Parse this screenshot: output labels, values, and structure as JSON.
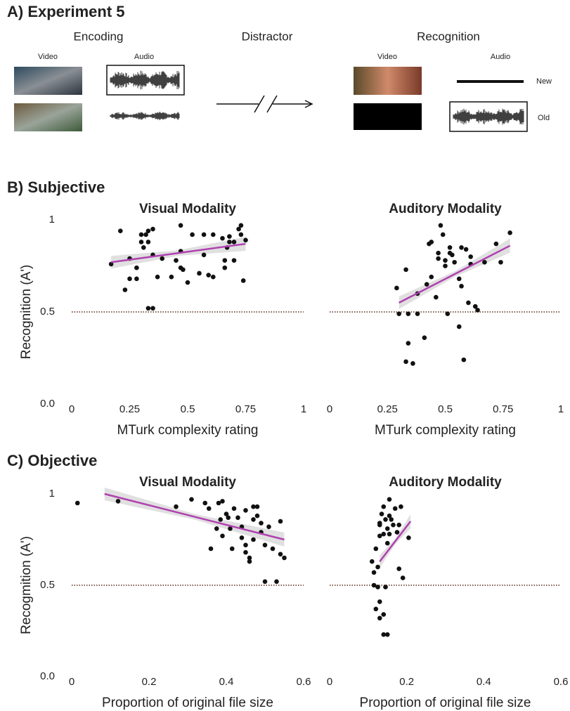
{
  "panel_a": {
    "title": "A) Experiment 5",
    "encoding": "Encoding",
    "distractor": "Distractor",
    "recognition": "Recognition",
    "enc_video": "Video",
    "enc_audio": "Audio",
    "rec_video": "Video",
    "rec_audio": "Audio",
    "new": "New",
    "old": "Old"
  },
  "section_labels": [
    "B) Subjective",
    "C) Objective"
  ],
  "chart_data": [
    {
      "type": "scatter",
      "title": "Visual Modality",
      "xlabel": "MTurk complexity rating",
      "ylabel": "Recognition (A')",
      "xlim": [
        0,
        1
      ],
      "ylim": [
        0,
        1
      ],
      "xticks": [
        0,
        0.25,
        0.5,
        0.75,
        1
      ],
      "yticks": [
        {
          "value": 0,
          "label": "0.0"
        },
        0.5,
        1
      ],
      "hline": 0.5,
      "color": "#111111",
      "x": [
        0.17,
        0.21,
        0.23,
        0.25,
        0.25,
        0.28,
        0.28,
        0.3,
        0.3,
        0.31,
        0.32,
        0.33,
        0.33,
        0.35,
        0.33,
        0.35,
        0.35,
        0.37,
        0.39,
        0.43,
        0.45,
        0.47,
        0.47,
        0.47,
        0.48,
        0.5,
        0.52,
        0.55,
        0.57,
        0.57,
        0.59,
        0.61,
        0.61,
        0.65,
        0.66,
        0.66,
        0.67,
        0.68,
        0.68,
        0.7,
        0.7,
        0.72,
        0.73,
        0.74,
        0.73,
        0.75
      ],
      "values": [
        0.76,
        0.94,
        0.62,
        0.79,
        0.68,
        0.68,
        0.74,
        0.88,
        0.92,
        0.85,
        0.92,
        0.88,
        0.52,
        0.52,
        0.94,
        0.95,
        0.81,
        0.69,
        0.79,
        0.69,
        0.78,
        0.97,
        0.83,
        0.74,
        0.73,
        0.66,
        0.92,
        0.71,
        0.92,
        0.81,
        0.7,
        0.92,
        0.69,
        0.9,
        0.78,
        0.74,
        0.85,
        0.88,
        0.91,
        0.88,
        0.78,
        0.95,
        0.97,
        0.67,
        0.92,
        0.89
      ],
      "trend": {
        "x": [
          0.17,
          0.75
        ],
        "values": [
          0.77,
          0.87
        ],
        "color": "#b040b0"
      }
    },
    {
      "type": "scatter",
      "title": "Auditory Modality",
      "xlabel": "MTurk complexity rating",
      "xlim": [
        0,
        1
      ],
      "ylim": [
        0,
        1
      ],
      "xticks": [
        0,
        0.25,
        0.5,
        0.75,
        1
      ],
      "hline": 0.5,
      "color": "#111111",
      "x": [
        0.29,
        0.3,
        0.33,
        0.34,
        0.34,
        0.33,
        0.36,
        0.38,
        0.38,
        0.41,
        0.42,
        0.43,
        0.44,
        0.44,
        0.46,
        0.47,
        0.47,
        0.48,
        0.49,
        0.5,
        0.5,
        0.52,
        0.52,
        0.51,
        0.53,
        0.54,
        0.56,
        0.57,
        0.57,
        0.56,
        0.58,
        0.59,
        0.6,
        0.61,
        0.61,
        0.63,
        0.64,
        0.67,
        0.72,
        0.74,
        0.78
      ],
      "values": [
        0.63,
        0.49,
        0.73,
        0.49,
        0.33,
        0.23,
        0.22,
        0.49,
        0.6,
        0.36,
        0.65,
        0.87,
        0.88,
        0.69,
        0.58,
        0.82,
        0.79,
        0.97,
        0.92,
        0.78,
        0.75,
        0.85,
        0.82,
        0.49,
        0.81,
        0.77,
        0.68,
        0.85,
        0.64,
        0.42,
        0.24,
        0.84,
        0.55,
        0.8,
        0.76,
        0.53,
        0.51,
        0.77,
        0.87,
        0.77,
        0.93
      ],
      "trend": {
        "x": [
          0.3,
          0.78
        ],
        "values": [
          0.55,
          0.86
        ],
        "color": "#b040b0"
      }
    },
    {
      "type": "scatter",
      "title": "Visual Modality",
      "xlabel": "Proportion of original file size",
      "ylabel": "Recogmition (A')",
      "xlim": [
        0,
        0.6
      ],
      "ylim": [
        0,
        1
      ],
      "xticks": [
        0,
        0.2,
        0.4,
        0.6
      ],
      "yticks": [
        {
          "value": 0,
          "label": "0.0"
        },
        0.5,
        1
      ],
      "hline": 0.5,
      "color": "#111111",
      "x": [
        0.015,
        0.12,
        0.27,
        0.31,
        0.345,
        0.355,
        0.36,
        0.375,
        0.38,
        0.385,
        0.39,
        0.39,
        0.4,
        0.405,
        0.41,
        0.415,
        0.42,
        0.43,
        0.44,
        0.44,
        0.45,
        0.45,
        0.45,
        0.46,
        0.46,
        0.47,
        0.47,
        0.47,
        0.48,
        0.48,
        0.49,
        0.49,
        0.5,
        0.5,
        0.51,
        0.52,
        0.53,
        0.54,
        0.54,
        0.55
      ],
      "values": [
        0.95,
        0.96,
        0.93,
        0.97,
        0.95,
        0.92,
        0.7,
        0.81,
        0.95,
        0.86,
        0.96,
        0.77,
        0.89,
        0.87,
        0.81,
        0.7,
        0.92,
        0.87,
        0.82,
        0.76,
        0.91,
        0.72,
        0.68,
        0.65,
        0.63,
        0.75,
        0.86,
        0.93,
        0.93,
        0.88,
        0.84,
        0.79,
        0.52,
        0.72,
        0.82,
        0.7,
        0.52,
        0.67,
        0.85,
        0.65
      ],
      "trend": {
        "x": [
          0.085,
          0.55
        ],
        "values": [
          1.0,
          0.75
        ],
        "color": "#b040b0"
      }
    },
    {
      "type": "scatter",
      "title": "Auditory Modality",
      "xlabel": "Proportion of original file size",
      "xlim": [
        0,
        0.6
      ],
      "ylim": [
        0,
        1
      ],
      "xticks": [
        0,
        0.2,
        0.4,
        0.6
      ],
      "hline": 0.5,
      "color": "#111111",
      "x": [
        0.11,
        0.115,
        0.115,
        0.12,
        0.12,
        0.125,
        0.125,
        0.13,
        0.13,
        0.13,
        0.13,
        0.13,
        0.135,
        0.14,
        0.14,
        0.14,
        0.14,
        0.145,
        0.145,
        0.15,
        0.15,
        0.15,
        0.155,
        0.155,
        0.155,
        0.16,
        0.165,
        0.17,
        0.175,
        0.18,
        0.18,
        0.185,
        0.19,
        0.205
      ],
      "values": [
        0.63,
        0.57,
        0.5,
        0.7,
        0.37,
        0.6,
        0.49,
        0.84,
        0.77,
        0.32,
        0.83,
        0.41,
        0.89,
        0.34,
        0.23,
        0.78,
        0.93,
        0.49,
        0.86,
        0.23,
        0.73,
        0.81,
        0.97,
        0.88,
        0.78,
        0.86,
        0.83,
        0.92,
        0.79,
        0.59,
        0.83,
        0.93,
        0.54,
        0.76
      ],
      "trend": {
        "x": [
          0.13,
          0.21
        ],
        "values": [
          0.63,
          0.85
        ],
        "color": "#b040b0"
      }
    }
  ]
}
